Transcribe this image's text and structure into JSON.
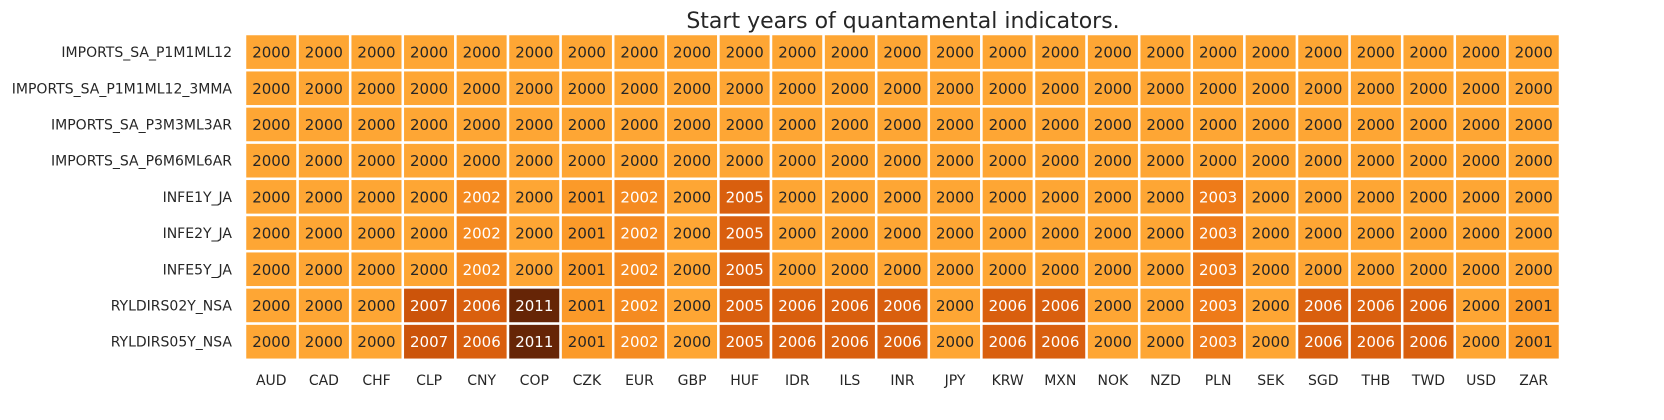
{
  "chart_data": {
    "type": "heatmap",
    "title": "Start years of quantamental indicators.",
    "xlabel": "",
    "ylabel": "",
    "rows": [
      "IMPORTS_SA_P1M1ML12",
      "IMPORTS_SA_P1M1ML12_3MMA",
      "IMPORTS_SA_P3M3ML3AR",
      "IMPORTS_SA_P6M6ML6AR",
      "INFE1Y_JA",
      "INFE2Y_JA",
      "INFE5Y_JA",
      "RYLDIRS02Y_NSA",
      "RYLDIRS05Y_NSA"
    ],
    "columns": [
      "AUD",
      "CAD",
      "CHF",
      "CLP",
      "CNY",
      "COP",
      "CZK",
      "EUR",
      "GBP",
      "HUF",
      "IDR",
      "ILS",
      "INR",
      "JPY",
      "KRW",
      "MXN",
      "NOK",
      "NZD",
      "PLN",
      "SEK",
      "SGD",
      "THB",
      "TWD",
      "USD",
      "ZAR"
    ],
    "values": [
      [
        2000,
        2000,
        2000,
        2000,
        2000,
        2000,
        2000,
        2000,
        2000,
        2000,
        2000,
        2000,
        2000,
        2000,
        2000,
        2000,
        2000,
        2000,
        2000,
        2000,
        2000,
        2000,
        2000,
        2000,
        2000
      ],
      [
        2000,
        2000,
        2000,
        2000,
        2000,
        2000,
        2000,
        2000,
        2000,
        2000,
        2000,
        2000,
        2000,
        2000,
        2000,
        2000,
        2000,
        2000,
        2000,
        2000,
        2000,
        2000,
        2000,
        2000,
        2000
      ],
      [
        2000,
        2000,
        2000,
        2000,
        2000,
        2000,
        2000,
        2000,
        2000,
        2000,
        2000,
        2000,
        2000,
        2000,
        2000,
        2000,
        2000,
        2000,
        2000,
        2000,
        2000,
        2000,
        2000,
        2000,
        2000
      ],
      [
        2000,
        2000,
        2000,
        2000,
        2000,
        2000,
        2000,
        2000,
        2000,
        2000,
        2000,
        2000,
        2000,
        2000,
        2000,
        2000,
        2000,
        2000,
        2000,
        2000,
        2000,
        2000,
        2000,
        2000,
        2000
      ],
      [
        2000,
        2000,
        2000,
        2000,
        2002,
        2000,
        2001,
        2002,
        2000,
        2005,
        2000,
        2000,
        2000,
        2000,
        2000,
        2000,
        2000,
        2000,
        2003,
        2000,
        2000,
        2000,
        2000,
        2000,
        2000
      ],
      [
        2000,
        2000,
        2000,
        2000,
        2002,
        2000,
        2001,
        2002,
        2000,
        2005,
        2000,
        2000,
        2000,
        2000,
        2000,
        2000,
        2000,
        2000,
        2003,
        2000,
        2000,
        2000,
        2000,
        2000,
        2000
      ],
      [
        2000,
        2000,
        2000,
        2000,
        2002,
        2000,
        2001,
        2002,
        2000,
        2005,
        2000,
        2000,
        2000,
        2000,
        2000,
        2000,
        2000,
        2000,
        2003,
        2000,
        2000,
        2000,
        2000,
        2000,
        2000
      ],
      [
        2000,
        2000,
        2000,
        2007,
        2006,
        2011,
        2001,
        2002,
        2000,
        2005,
        2006,
        2006,
        2006,
        2000,
        2006,
        2006,
        2000,
        2000,
        2003,
        2000,
        2006,
        2006,
        2006,
        2000,
        2001
      ],
      [
        2000,
        2000,
        2000,
        2007,
        2006,
        2011,
        2001,
        2002,
        2000,
        2005,
        2006,
        2006,
        2006,
        2000,
        2006,
        2006,
        2000,
        2000,
        2003,
        2000,
        2006,
        2006,
        2006,
        2000,
        2001
      ]
    ],
    "vmin": 2000,
    "vmax": 2011,
    "colormap": "YlOrBr",
    "grid": false
  },
  "colors": {
    "cell_border": "#ffffff",
    "dark_text": "#262626",
    "light_text": "#ffffff",
    "ramp": [
      "#fea634",
      "#fb9a29",
      "#f58b21",
      "#ee7b19",
      "#e46c11",
      "#d95f0e",
      "#cc540a",
      "#b94706",
      "#a63d04",
      "#8b3404",
      "#662506"
    ]
  }
}
